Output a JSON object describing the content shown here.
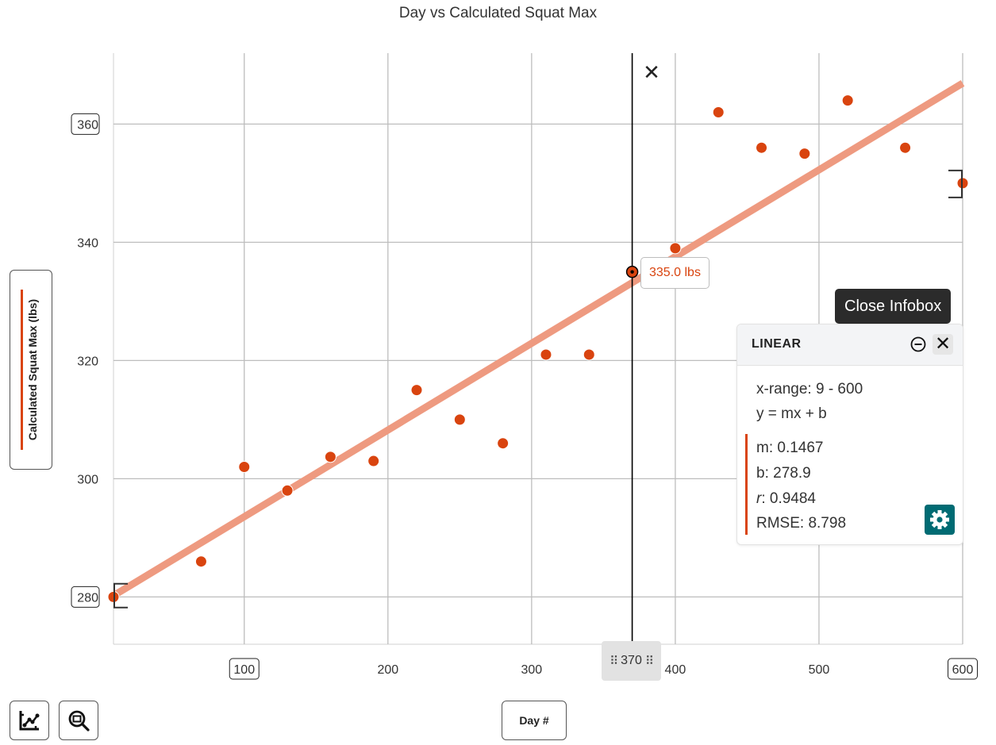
{
  "chart_data": {
    "type": "scatter",
    "title": "Day vs Calculated Squat Max",
    "xlabel": "Day #",
    "ylabel": "Calculated Squat Max (lbs)",
    "xlim": [
      9,
      600
    ],
    "ylim": [
      272,
      372
    ],
    "x_ticks": [
      100,
      200,
      300,
      400,
      500,
      600
    ],
    "x_tick_labels": [
      "100",
      "200",
      "300",
      "400",
      "500",
      "600"
    ],
    "x_ticks_boxed": [
      100,
      600
    ],
    "y_ticks": [
      280,
      300,
      320,
      340,
      360
    ],
    "y_tick_labels": [
      "280",
      "300",
      "320",
      "340",
      "360"
    ],
    "y_ticks_boxed": [
      280,
      360
    ],
    "grid": true,
    "points": [
      {
        "x": 9,
        "y": 280
      },
      {
        "x": 70,
        "y": 286
      },
      {
        "x": 100,
        "y": 302
      },
      {
        "x": 130,
        "y": 298
      },
      {
        "x": 160,
        "y": 303.7
      },
      {
        "x": 190,
        "y": 303
      },
      {
        "x": 220,
        "y": 315
      },
      {
        "x": 250,
        "y": 310
      },
      {
        "x": 280,
        "y": 306
      },
      {
        "x": 310,
        "y": 321
      },
      {
        "x": 340,
        "y": 321
      },
      {
        "x": 370,
        "y": 335
      },
      {
        "x": 400,
        "y": 339
      },
      {
        "x": 430,
        "y": 362
      },
      {
        "x": 460,
        "y": 356
      },
      {
        "x": 490,
        "y": 355
      },
      {
        "x": 520,
        "y": 364
      },
      {
        "x": 560,
        "y": 356
      },
      {
        "x": 600,
        "y": 350
      }
    ],
    "fit": {
      "type": "linear",
      "m": 0.1467,
      "b": 278.9,
      "x_range": [
        9,
        600
      ]
    },
    "cursor": {
      "x": 370,
      "label": "370",
      "point_label": "335.0 lbs"
    },
    "colors": {
      "points": "#d9440f",
      "fit_line": "#ee9a80",
      "grid": "#bdbdbd",
      "cursor": "#000000"
    }
  },
  "toolbar": {
    "tooltip": "Close Infobox",
    "icons": [
      "fit-chart-icon",
      "zoom-icon",
      "gear-icon",
      "minus-circle-icon",
      "close-icon",
      "drag-handle-icon"
    ]
  },
  "infobox": {
    "title": "LINEAR",
    "x_range": "x-range: 9 - 600",
    "equation": "y = mx + b",
    "m_label": "m",
    "m_value": ": 0.1467",
    "b_label": "b",
    "b_value": ": 278.9",
    "r_label": "r",
    "r_value": ": 0.9484",
    "rmse_label": "RMSE",
    "rmse_value": ": 8.798",
    "accent_color": "#006b73"
  }
}
